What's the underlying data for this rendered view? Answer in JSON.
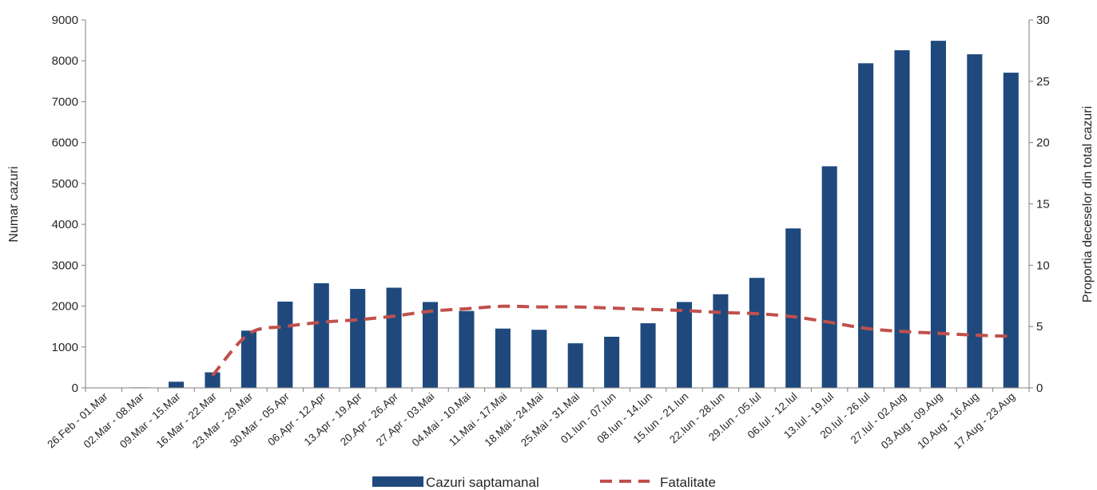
{
  "chart_data": {
    "type": "bar",
    "categories": [
      "26.Feb - 01.Mar",
      "02.Mar - 08.Mar",
      "09.Mar - 15.Mar",
      "16.Mar - 22.Mar",
      "23.Mar - 29.Mar",
      "30.Mar - 05.Apr",
      "06.Apr - 12.Apr",
      "13.Apr - 19.Apr",
      "20.Apr - 26.Apr",
      "27.Apr - 03.Mai",
      "04.Mai - 10.Mai",
      "11.Mai - 17.Mai",
      "18.Mai - 24.Mai",
      "25.Mai - 31.Mai",
      "01.Iun - 07.Iun",
      "08.Iun - 14.Iun",
      "15.Iun - 21.Iun",
      "22.Iun - 28.Iun",
      "29.Iun - 05.Iul",
      "06.Iul - 12.Iul",
      "13.Iul - 19.Iul",
      "20.Iul - 26.Iul",
      "27.Iul - 02.Aug",
      "03.Aug - 09.Aug",
      "10.Aug - 16.Aug",
      "17.Aug - 23.Aug"
    ],
    "series": [
      {
        "name": "Cazuri saptamanal",
        "type": "bar",
        "axis": "left",
        "color": "#1f497d",
        "values": [
          3,
          12,
          150,
          380,
          1400,
          2110,
          2560,
          2420,
          2450,
          2100,
          1880,
          1450,
          1420,
          1090,
          1250,
          1580,
          2100,
          2290,
          2690,
          3900,
          5420,
          7940,
          8260,
          8490,
          8160,
          7710
        ]
      },
      {
        "name": "Fatalitate",
        "type": "line",
        "style": "dashed",
        "axis": "right",
        "color": "#c0504d",
        "values": [
          null,
          null,
          null,
          1.0,
          4.4,
          5.0,
          5.35,
          5.55,
          5.85,
          6.25,
          6.45,
          6.65,
          6.6,
          6.6,
          6.5,
          6.4,
          6.3,
          6.15,
          6.05,
          5.8,
          5.35,
          4.85,
          4.6,
          4.45,
          4.3,
          4.2
        ]
      }
    ],
    "ylabel": "Numar cazuri",
    "y2label": "Proportia deceselor din total cazuri",
    "ylim": [
      0,
      9000
    ],
    "y2lim": [
      0,
      30
    ],
    "yticks": [
      "0",
      "1000",
      "2000",
      "3000",
      "4000",
      "5000",
      "6000",
      "7000",
      "8000",
      "9000"
    ],
    "y2ticks": [
      "0",
      "5",
      "10",
      "15",
      "20",
      "25",
      "30"
    ],
    "legend": {
      "position": "bottom",
      "items": [
        {
          "label": "Cazuri saptamanal",
          "color": "#1f497d",
          "kind": "bar"
        },
        {
          "label": "Fatalitate",
          "color": "#c0504d",
          "kind": "dashed-line"
        }
      ]
    },
    "grid": false
  }
}
